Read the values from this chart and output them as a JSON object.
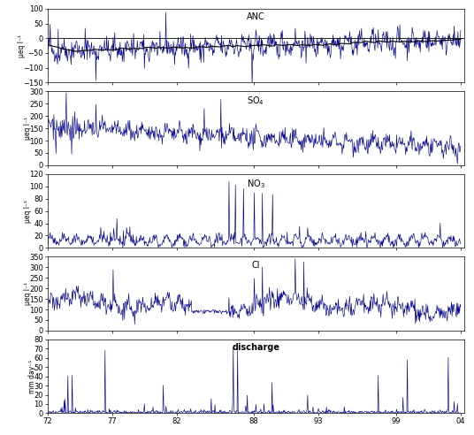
{
  "title_anc": "ANC",
  "title_so4": "SO$_4$",
  "title_no3": "NO$_3$",
  "title_cl": "Cl",
  "title_discharge": "discharge",
  "ylabel_anc": "μeq l⁻¹",
  "ylabel_so4": "μeq l⁻¹",
  "ylabel_no3": "μeq l⁻¹",
  "ylabel_cl": "μeq l⁻¹",
  "ylabel_discharge": "mm day⁻¹",
  "xstart": 1972,
  "xend": 2004,
  "xtick_years": [
    1972,
    1977,
    1982,
    1988,
    1993,
    1999,
    2004
  ],
  "xtick_labels": [
    "72",
    "77",
    "82",
    "88",
    "93",
    "99",
    "04"
  ],
  "anc_ylim": [
    -150,
    100
  ],
  "anc_yticks": [
    -150,
    -100,
    -50,
    0,
    50,
    100
  ],
  "so4_ylim": [
    0,
    300
  ],
  "so4_yticks": [
    0,
    50,
    100,
    150,
    200,
    250,
    300
  ],
  "no3_ylim": [
    0,
    120
  ],
  "no3_yticks": [
    0,
    20,
    40,
    60,
    80,
    100,
    120
  ],
  "cl_ylim": [
    0,
    350
  ],
  "cl_yticks": [
    0,
    50,
    100,
    150,
    200,
    250,
    300,
    350
  ],
  "discharge_ylim": [
    0,
    80
  ],
  "discharge_yticks": [
    0,
    10,
    20,
    30,
    40,
    50,
    60,
    70,
    80
  ],
  "line_color": "#00008B",
  "bg_color": "#ffffff",
  "seed": 42
}
